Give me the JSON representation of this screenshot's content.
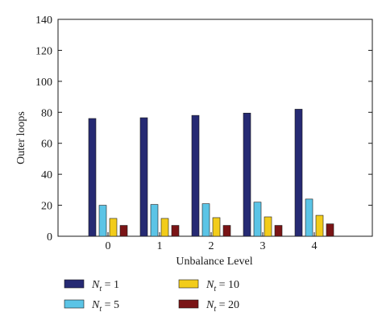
{
  "chart_data": {
    "type": "bar",
    "title": "",
    "xlabel": "Unbalance Level",
    "ylabel": "Outer loops",
    "categories": [
      "0",
      "1",
      "2",
      "3",
      "4"
    ],
    "ylim": [
      0,
      140
    ],
    "yticks": [
      0,
      20,
      40,
      60,
      80,
      100,
      120,
      140
    ],
    "grid": false,
    "legend_position": "bottom",
    "series": [
      {
        "name": "N_t = 1",
        "legend_var": "N",
        "legend_sub": "t",
        "legend_rest": " = 1",
        "color": "#262a73",
        "values": [
          76,
          76.5,
          78,
          79.5,
          82
        ]
      },
      {
        "name": "N_t = 5",
        "legend_var": "N",
        "legend_sub": "t",
        "legend_rest": " = 5",
        "color": "#5bc4e6",
        "values": [
          20,
          20.5,
          21,
          22,
          24
        ]
      },
      {
        "name": "N_t = 10",
        "legend_var": "N",
        "legend_sub": "t",
        "legend_rest": " = 10",
        "color": "#f2cc1a",
        "values": [
          11.5,
          11.5,
          12,
          12.5,
          13.5
        ]
      },
      {
        "name": "N_t = 20",
        "legend_var": "N",
        "legend_sub": "t",
        "legend_rest": " = 20",
        "color": "#7a1416",
        "values": [
          7,
          7,
          7,
          7,
          8
        ]
      }
    ]
  }
}
